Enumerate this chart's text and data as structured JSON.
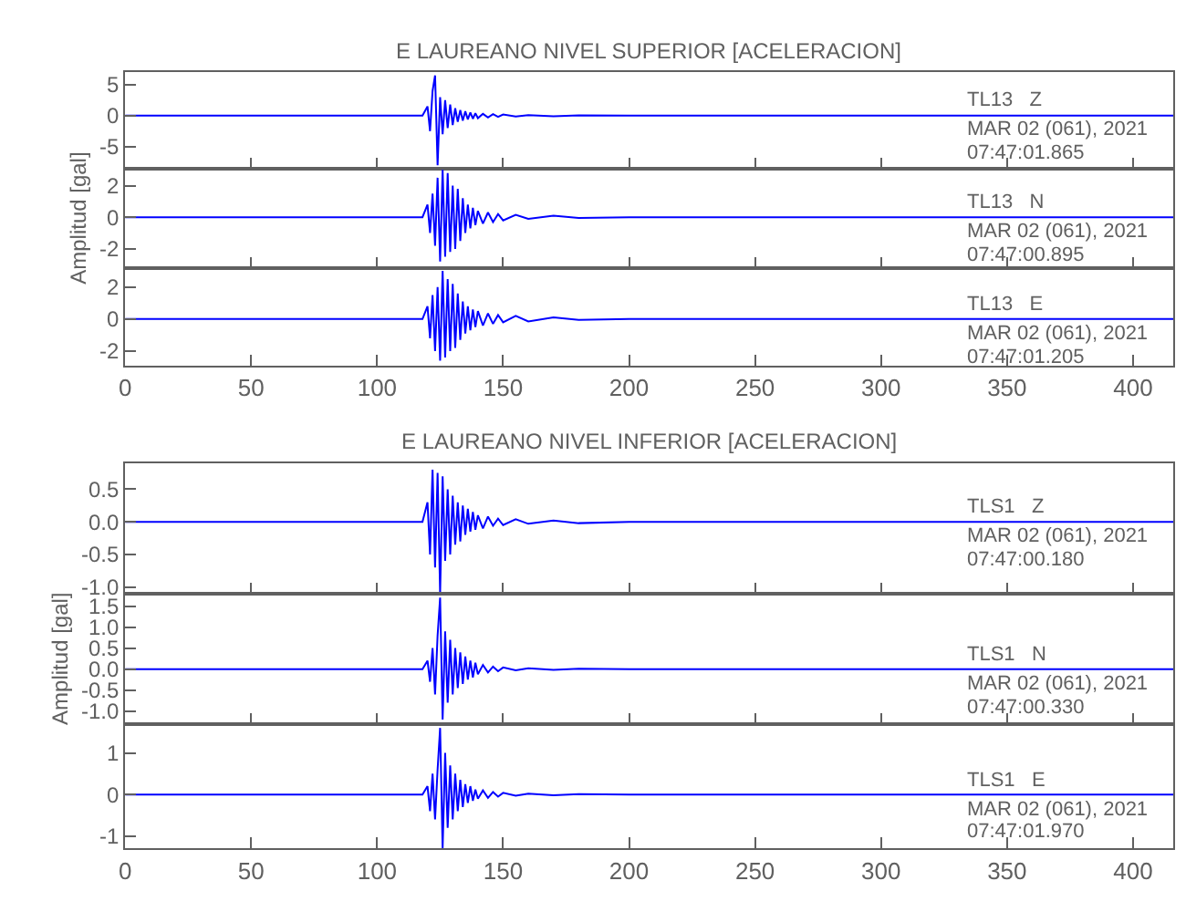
{
  "chart_data": [
    {
      "type": "line",
      "title": "E LAUREANO NIVEL SUPERIOR [ACELERACION]",
      "tick_labels": "y",
      "xlim": [
        0,
        416
      ],
      "xticks": [
        0,
        50,
        100,
        150,
        200,
        250,
        300,
        350,
        400
      ],
      "ylim": [
        -8.5,
        7
      ],
      "yticks": [
        -5,
        0,
        5
      ],
      "x": [
        0,
        50,
        100,
        118,
        120,
        121,
        122,
        123,
        124,
        125,
        126,
        127,
        128,
        129,
        130,
        131,
        132,
        133,
        134,
        135,
        136,
        137,
        138,
        139,
        140,
        142,
        144,
        146,
        148,
        150,
        155,
        160,
        170,
        180,
        200,
        250,
        300,
        350,
        400,
        416
      ],
      "series": [
        {
          "color": "#0000ff",
          "values": [
            0,
            0,
            0,
            0,
            1.5,
            -2.5,
            4,
            6.5,
            -8,
            3,
            -3,
            2.5,
            -2,
            1.8,
            -1.5,
            1.2,
            -1,
            0.9,
            -0.8,
            0.7,
            -0.6,
            0.5,
            -0.5,
            0.4,
            -0.4,
            0.3,
            -0.3,
            0.25,
            -0.2,
            0.2,
            -0.15,
            0.1,
            -0.1,
            0.05,
            0,
            0,
            0,
            0,
            0,
            0
          ]
        }
      ],
      "annotations": [
        "TL13   Z",
        "MAR 02 (061), 2021",
        "07:47:01.865"
      ]
    },
    {
      "type": "line",
      "ylabel": "Amplitud [gal]",
      "tick_labels": "y",
      "xlim": [
        0,
        416
      ],
      "xticks": [
        0,
        50,
        100,
        150,
        200,
        250,
        300,
        350,
        400
      ],
      "ylim": [
        -3.2,
        3.1
      ],
      "yticks": [
        -2,
        0,
        2
      ],
      "x": [
        0,
        50,
        100,
        118,
        120,
        121,
        122,
        123,
        124,
        125,
        126,
        127,
        128,
        129,
        130,
        131,
        132,
        133,
        134,
        135,
        136,
        137,
        138,
        139,
        140,
        142,
        144,
        146,
        148,
        150,
        155,
        160,
        170,
        180,
        200,
        250,
        300,
        350,
        400,
        416
      ],
      "series": [
        {
          "color": "#0000ff",
          "values": [
            0,
            0,
            0,
            0,
            0.8,
            -1,
            1.5,
            -1.8,
            2.5,
            -2.8,
            3,
            -2.5,
            2.8,
            -2.2,
            2,
            -2,
            1.8,
            -1.5,
            1.2,
            -1,
            0.8,
            -0.7,
            0.6,
            -0.5,
            0.4,
            -0.4,
            0.3,
            -0.3,
            0.2,
            -0.2,
            0.15,
            -0.1,
            0.1,
            -0.05,
            0,
            0,
            0,
            0,
            0,
            0
          ]
        }
      ],
      "annotations": [
        "TL13   N",
        "MAR 02 (061), 2021",
        "07:47:00.895"
      ]
    },
    {
      "type": "line",
      "xlim": [
        0,
        416
      ],
      "xticks": [
        0,
        50,
        100,
        150,
        200,
        250,
        300,
        350,
        400
      ],
      "ylim": [
        -2.9,
        3.2
      ],
      "yticks": [
        -2,
        0,
        2
      ],
      "x": [
        0,
        50,
        100,
        118,
        120,
        121,
        122,
        123,
        124,
        125,
        126,
        127,
        128,
        129,
        130,
        131,
        132,
        133,
        134,
        135,
        136,
        137,
        138,
        139,
        140,
        142,
        144,
        146,
        148,
        150,
        155,
        160,
        170,
        180,
        200,
        250,
        300,
        350,
        400,
        416
      ],
      "series": [
        {
          "color": "#0000ff",
          "values": [
            0,
            0,
            0,
            0,
            0.8,
            -1.2,
            1.5,
            -2,
            2,
            -2.6,
            3,
            -2.4,
            2.5,
            -2,
            2.2,
            -1.8,
            1.6,
            -1.3,
            1.1,
            -0.9,
            0.8,
            -0.7,
            0.6,
            -0.5,
            0.5,
            -0.4,
            0.35,
            -0.3,
            0.25,
            -0.2,
            0.2,
            -0.15,
            0.1,
            -0.05,
            0,
            0,
            0,
            0,
            0,
            0
          ]
        }
      ],
      "annotations": [
        "TL13   E",
        "MAR 02 (061), 2021",
        "07:47:01.205"
      ]
    },
    {
      "type": "line",
      "title": "E LAUREANO NIVEL INFERIOR [ACELERACION]",
      "tick_labels": "y",
      "xlim": [
        0,
        416
      ],
      "xticks": [
        0,
        50,
        100,
        150,
        200,
        250,
        300,
        350,
        400
      ],
      "ylim": [
        -1.1,
        0.9
      ],
      "yticks": [
        {
          "value": -1.0,
          "label": "-1.0"
        },
        -0.5,
        {
          "value": 0.0,
          "label": "0.0"
        },
        0.5
      ],
      "x": [
        0,
        50,
        100,
        118,
        120,
        121,
        122,
        123,
        124,
        125,
        126,
        127,
        128,
        129,
        130,
        131,
        132,
        133,
        134,
        135,
        136,
        137,
        138,
        139,
        140,
        142,
        144,
        146,
        148,
        150,
        155,
        160,
        170,
        180,
        200,
        250,
        300,
        350,
        400,
        416
      ],
      "series": [
        {
          "color": "#0000ff",
          "values": [
            0,
            0,
            0,
            0,
            0.3,
            -0.5,
            0.8,
            -0.7,
            0.75,
            -1.1,
            0.7,
            -0.6,
            0.5,
            -0.5,
            0.4,
            -0.35,
            0.3,
            -0.3,
            0.25,
            -0.2,
            0.2,
            -0.15,
            0.15,
            -0.12,
            0.1,
            -0.1,
            0.08,
            -0.06,
            0.05,
            -0.05,
            0.04,
            -0.03,
            0.02,
            -0.02,
            0,
            0,
            0,
            0,
            0,
            0
          ]
        }
      ],
      "annotations": [
        "TLS1   Z",
        "MAR 02 (061), 2021",
        "07:47:00.180"
      ]
    },
    {
      "type": "line",
      "ylabel": "Amplitud [gal]",
      "tick_labels": "y",
      "xlim": [
        0,
        416
      ],
      "xticks": [
        0,
        50,
        100,
        150,
        200,
        250,
        300,
        350,
        400
      ],
      "ylim": [
        -1.3,
        1.8
      ],
      "yticks": [
        {
          "value": -1.0,
          "label": "-1.0"
        },
        -0.5,
        {
          "value": 0.0,
          "label": "0.0"
        },
        0.5,
        {
          "value": 1.0,
          "label": "1.0"
        },
        1.5
      ],
      "x": [
        0,
        50,
        100,
        118,
        120,
        121,
        122,
        123,
        124,
        125,
        126,
        127,
        128,
        129,
        130,
        131,
        132,
        133,
        134,
        135,
        136,
        137,
        138,
        139,
        140,
        142,
        144,
        146,
        148,
        150,
        155,
        160,
        170,
        180,
        200,
        250,
        300,
        350,
        400,
        416
      ],
      "series": [
        {
          "color": "#0000ff",
          "values": [
            0,
            0,
            0,
            0,
            0.2,
            -0.3,
            0.5,
            -0.6,
            0.8,
            1.7,
            -1.2,
            0.9,
            -0.8,
            0.7,
            -0.6,
            0.5,
            -0.45,
            0.4,
            -0.35,
            0.3,
            -0.25,
            0.2,
            -0.2,
            0.15,
            -0.12,
            0.1,
            -0.08,
            0.06,
            -0.05,
            0.04,
            -0.03,
            0.02,
            -0.02,
            0.01,
            0,
            0,
            0,
            0,
            0,
            0
          ]
        }
      ],
      "annotations": [
        "TLS1   N",
        "MAR 02 (061), 2021",
        "07:47:00.330"
      ]
    },
    {
      "type": "line",
      "xlim": [
        0,
        416
      ],
      "xticks": [
        0,
        50,
        100,
        150,
        200,
        250,
        300,
        350,
        400
      ],
      "ylim": [
        -1.3,
        1.7
      ],
      "yticks": [
        -1,
        0,
        1
      ],
      "x": [
        0,
        50,
        100,
        118,
        120,
        121,
        122,
        123,
        124,
        125,
        126,
        127,
        128,
        129,
        130,
        131,
        132,
        133,
        134,
        135,
        136,
        137,
        138,
        139,
        140,
        142,
        144,
        146,
        148,
        150,
        155,
        160,
        170,
        180,
        200,
        250,
        300,
        350,
        400,
        416
      ],
      "series": [
        {
          "color": "#0000ff",
          "values": [
            0,
            0,
            0,
            0,
            0.2,
            -0.4,
            0.5,
            -0.6,
            0.6,
            1.6,
            -1.3,
            1,
            -0.8,
            0.7,
            -0.6,
            0.5,
            -0.4,
            0.35,
            -0.3,
            0.25,
            -0.2,
            0.2,
            -0.15,
            0.12,
            -0.1,
            0.1,
            -0.08,
            0.06,
            -0.05,
            0.04,
            -0.03,
            0.02,
            -0.02,
            0.01,
            0,
            0,
            0,
            0,
            0,
            0
          ]
        }
      ],
      "annotations": [
        "TLS1   E",
        "MAR 02 (061), 2021",
        "07:47:01.970"
      ]
    }
  ]
}
